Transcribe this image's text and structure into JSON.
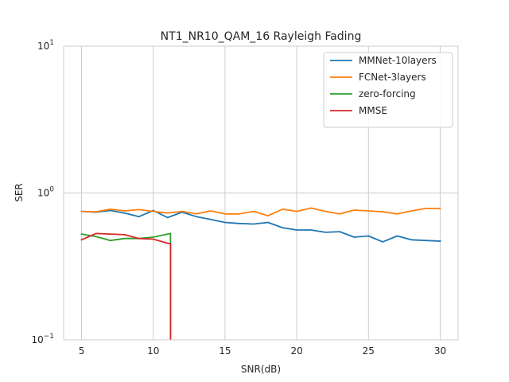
{
  "chart_data": {
    "type": "line",
    "title": "NT1_NR10_QAM_16 Rayleigh Fading",
    "xlabel": "SNR(dB)",
    "ylabel": "SER",
    "xlim": [
      3.75,
      31.25
    ],
    "ylim": [
      0.1,
      10
    ],
    "yscale": "log",
    "grid": true,
    "legend_position": "top-right",
    "x_ticks": [
      5,
      10,
      15,
      20,
      25,
      30
    ],
    "x_tick_labels": [
      "5",
      "10",
      "15",
      "20",
      "25",
      "30"
    ],
    "y_ticks": [
      0.1,
      1,
      10
    ],
    "y_tick_labels": [
      {
        "base": "10",
        "exp": "−1"
      },
      {
        "base": "10",
        "exp": "0"
      },
      {
        "base": "10",
        "exp": "1"
      }
    ],
    "series": [
      {
        "name": "MMNet-10layers",
        "color": "#1f77b4",
        "x": [
          5,
          6,
          7,
          8,
          9,
          10,
          11,
          12,
          13,
          14,
          15,
          16,
          17,
          18,
          19,
          20,
          21,
          22,
          23,
          24,
          25,
          26,
          27,
          28,
          29,
          30
        ],
        "y": [
          0.75,
          0.74,
          0.76,
          0.73,
          0.69,
          0.76,
          0.68,
          0.74,
          0.69,
          0.66,
          0.63,
          0.62,
          0.615,
          0.63,
          0.58,
          0.56,
          0.56,
          0.54,
          0.545,
          0.5,
          0.51,
          0.465,
          0.51,
          0.48,
          0.475,
          0.47
        ]
      },
      {
        "name": "FCNet-3layers",
        "color": "#ff7f0e",
        "x": [
          5,
          6,
          7,
          8,
          9,
          10,
          11,
          12,
          13,
          14,
          15,
          16,
          17,
          18,
          19,
          20,
          21,
          22,
          23,
          24,
          25,
          26,
          27,
          28,
          29,
          30
        ],
        "y": [
          0.75,
          0.745,
          0.775,
          0.755,
          0.77,
          0.75,
          0.73,
          0.75,
          0.72,
          0.755,
          0.72,
          0.72,
          0.75,
          0.7,
          0.775,
          0.75,
          0.79,
          0.75,
          0.72,
          0.765,
          0.755,
          0.745,
          0.72,
          0.755,
          0.785,
          0.785
        ]
      },
      {
        "name": "zero-forcing",
        "color": "#2ca02c",
        "x": [
          5,
          6,
          7,
          8,
          9,
          10,
          11,
          11.2,
          11.2
        ],
        "y": [
          0.525,
          0.505,
          0.475,
          0.49,
          0.49,
          0.5,
          0.525,
          0.53,
          0.05
        ]
      },
      {
        "name": "MMSE",
        "color": "#d62728",
        "x": [
          5,
          6,
          7,
          8,
          9,
          10,
          11,
          11.2,
          11.2
        ],
        "y": [
          0.48,
          0.53,
          0.525,
          0.52,
          0.49,
          0.485,
          0.455,
          0.45,
          0.05
        ]
      }
    ]
  }
}
